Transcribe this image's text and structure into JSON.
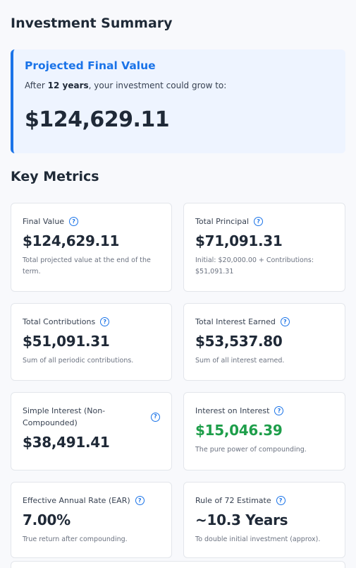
{
  "summary": {
    "title": "Investment Summary"
  },
  "projection": {
    "title": "Projected Final Value",
    "subtitle_prefix": "After ",
    "years": "12 years",
    "subtitle_suffix": ", your investment could grow to:",
    "value": "$124,629.11"
  },
  "metrics": {
    "title": "Key Metrics",
    "help_glyph": "?",
    "cards": [
      {
        "label": "Final Value",
        "value": "$124,629.11",
        "desc": "Total projected value at the end of the term."
      },
      {
        "label": "Total Principal",
        "value": "$71,091.31",
        "desc": "Initial: $20,000.00 + Contributions: $51,091.31"
      },
      {
        "label": "Total Contributions",
        "value": "$51,091.31",
        "desc": "Sum of all periodic contributions."
      },
      {
        "label": "Total Interest Earned",
        "value": "$53,537.80",
        "desc": "Sum of all interest earned."
      },
      {
        "label": "Simple Interest (Non-Compounded)",
        "value": "$38,491.41",
        "desc": ""
      },
      {
        "label": "Interest on Interest",
        "value": "$15,046.39",
        "desc": "The pure power of compounding."
      },
      {
        "label": "Effective Annual Rate (EAR)",
        "value": "7.00%",
        "desc": "True return after compounding."
      },
      {
        "label": "Rule of 72 Estimate",
        "value": "~10.3 Years",
        "desc": "To double initial investment (approx)."
      }
    ]
  },
  "colors": {
    "accent": "#1a73e8",
    "positive": "#1e9e4a",
    "projection_bg": "#eef4ff",
    "page_bg": "#f8f9fc"
  },
  "icons": {
    "help": "help-circle-icon"
  }
}
